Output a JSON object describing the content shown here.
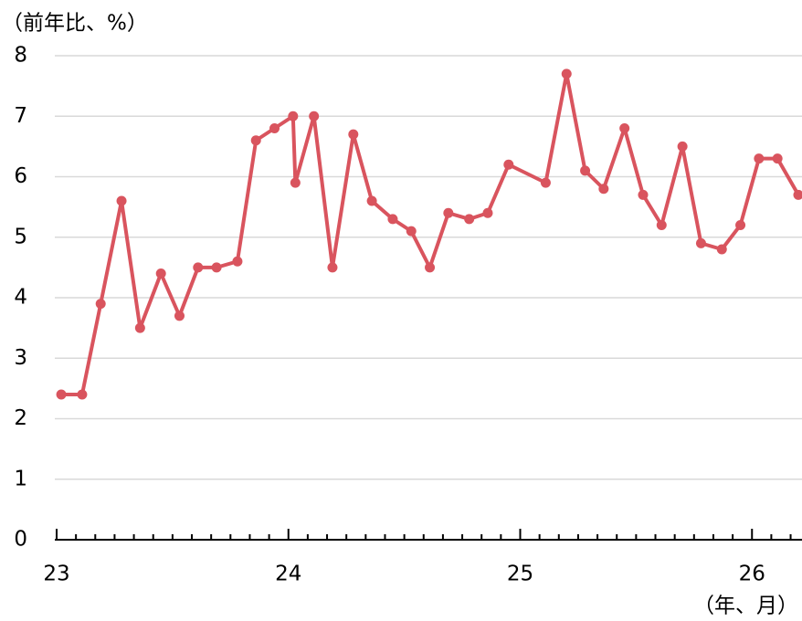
{
  "chart_data": {
    "type": "line",
    "y_axis_label": "（前年比、%）",
    "x_axis_label": "（年、月）",
    "x": [
      23.02,
      23.11,
      23.19,
      23.28,
      23.36,
      23.45,
      23.53,
      23.61,
      23.69,
      23.78,
      23.86,
      23.94,
      24.02,
      24.03,
      24.11,
      24.19,
      24.28,
      24.36,
      24.45,
      24.53,
      24.61,
      24.69,
      24.78,
      24.86,
      24.95,
      25.11,
      25.2,
      25.28,
      25.36,
      25.45,
      25.53,
      25.61,
      25.7,
      25.78,
      25.87,
      25.95,
      26.03,
      26.11,
      26.2
    ],
    "values": [
      2.4,
      2.4,
      3.9,
      5.6,
      3.5,
      4.4,
      3.7,
      4.5,
      4.5,
      4.6,
      6.6,
      6.8,
      7.0,
      5.9,
      7.0,
      4.5,
      6.7,
      5.6,
      5.3,
      5.1,
      4.5,
      5.4,
      5.3,
      5.4,
      6.2,
      5.9,
      7.7,
      6.1,
      5.8,
      6.8,
      5.7,
      5.2,
      6.5,
      4.9,
      4.8,
      5.2,
      6.3,
      6.3,
      5.7
    ],
    "color": "#d9545e",
    "xlim": [
      23,
      26.2
    ],
    "xticks": [
      23,
      24,
      25,
      26
    ],
    "ylim": [
      0,
      8
    ],
    "yticks": [
      0,
      1,
      2,
      3,
      4,
      5,
      6,
      7,
      8
    ],
    "grid": true
  }
}
